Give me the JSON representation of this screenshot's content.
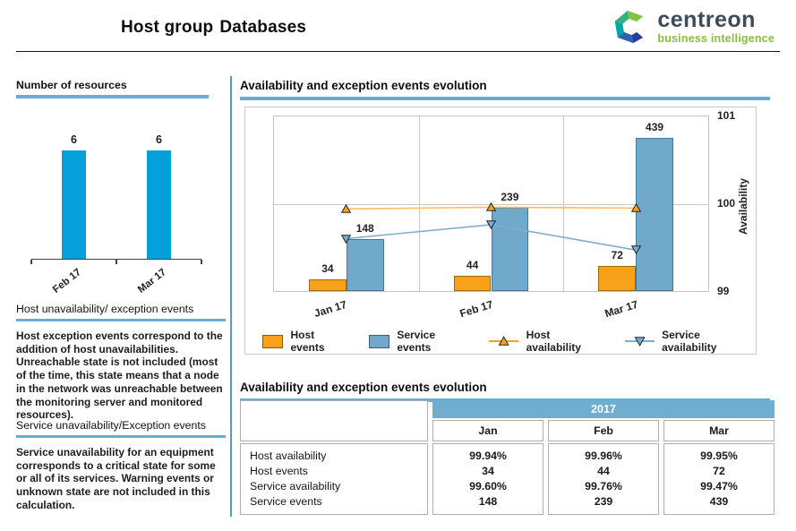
{
  "header": {
    "title_prefix": "Host group",
    "title_emph": "Databases",
    "logo_name": "centreon",
    "logo_tagline": "business intelligence"
  },
  "sidebar": {
    "resources_heading": "Number of resources",
    "host_section": {
      "heading": "Host unavailability/ exception events",
      "body": "Host exception events correspond to the addition of host unavailabilities. Unreachable state is not included (most of the time, this state means that a node in the network was unreachable between the monitoring server and monitored resources)."
    },
    "service_section": {
      "heading": "Service unavailability/Exception events",
      "body": "Service unavailability for an equipment corresponds to a critical state for some or all of its services. Warning events or unknown state are not included in this calculation."
    }
  },
  "main": {
    "chart_heading": "Availability and exception events evolution",
    "table_heading": "Availability and exception events evolution",
    "table": {
      "year": "2017",
      "columns": [
        "Jan",
        "Feb",
        "Mar"
      ],
      "rows": [
        {
          "label": "Host availability",
          "values": [
            "99.94%",
            "99.96%",
            "99.95%"
          ]
        },
        {
          "label": "Host events",
          "values": [
            "34",
            "44",
            "72"
          ]
        },
        {
          "label": "Service availability",
          "values": [
            "99.60%",
            "99.76%",
            "99.47%"
          ]
        },
        {
          "label": "Service events",
          "values": [
            "148",
            "239",
            "439"
          ]
        }
      ]
    }
  },
  "chart_data": [
    {
      "type": "bar",
      "title": "Number of resources",
      "categories": [
        "Feb 17",
        "Mar 17"
      ],
      "values": [
        6,
        6
      ],
      "ylim": [
        0,
        7.2
      ],
      "centers_pct": [
        25,
        75
      ],
      "bar_color": "#05A0DC",
      "grid": false,
      "legend_position": "none"
    },
    {
      "type": "bar+line",
      "title": "Availability and exception events evolution",
      "categories": [
        "Jan 17",
        "Feb 17",
        "Mar 17"
      ],
      "bar_series": [
        {
          "name": "Host events",
          "values": [
            34,
            44,
            72
          ],
          "color": "#F9A11B",
          "border": "#A06900"
        },
        {
          "name": "Service events",
          "values": [
            148,
            239,
            439
          ],
          "color": "#71A9CB",
          "border": "#44789B"
        }
      ],
      "line_series": [
        {
          "name": "Host availability",
          "values": [
            99.94,
            99.96,
            99.95
          ],
          "color": "#F9A11B",
          "line_color": "#F8BE5E",
          "marker": "triangle-up"
        },
        {
          "name": "Service availability",
          "values": [
            99.6,
            99.76,
            99.47
          ],
          "color": "#74AECF",
          "line_color": "#7FAECB",
          "marker": "triangle-down"
        }
      ],
      "events_axis_max": 500,
      "availability_axis": [
        99,
        101
      ],
      "y2_ticks": [
        "101",
        "100",
        "99"
      ],
      "y2_label": "Availability",
      "grid": true,
      "legend_position": "bottom"
    }
  ],
  "colors": {
    "accent-underline": "#66ACD8",
    "divider": "#4F9FCE",
    "table-year-bg": "#6FAECE",
    "host-orange": "#F9A11B",
    "service-blue": "#71A9CB",
    "resources-bar": "#05A0DC"
  }
}
